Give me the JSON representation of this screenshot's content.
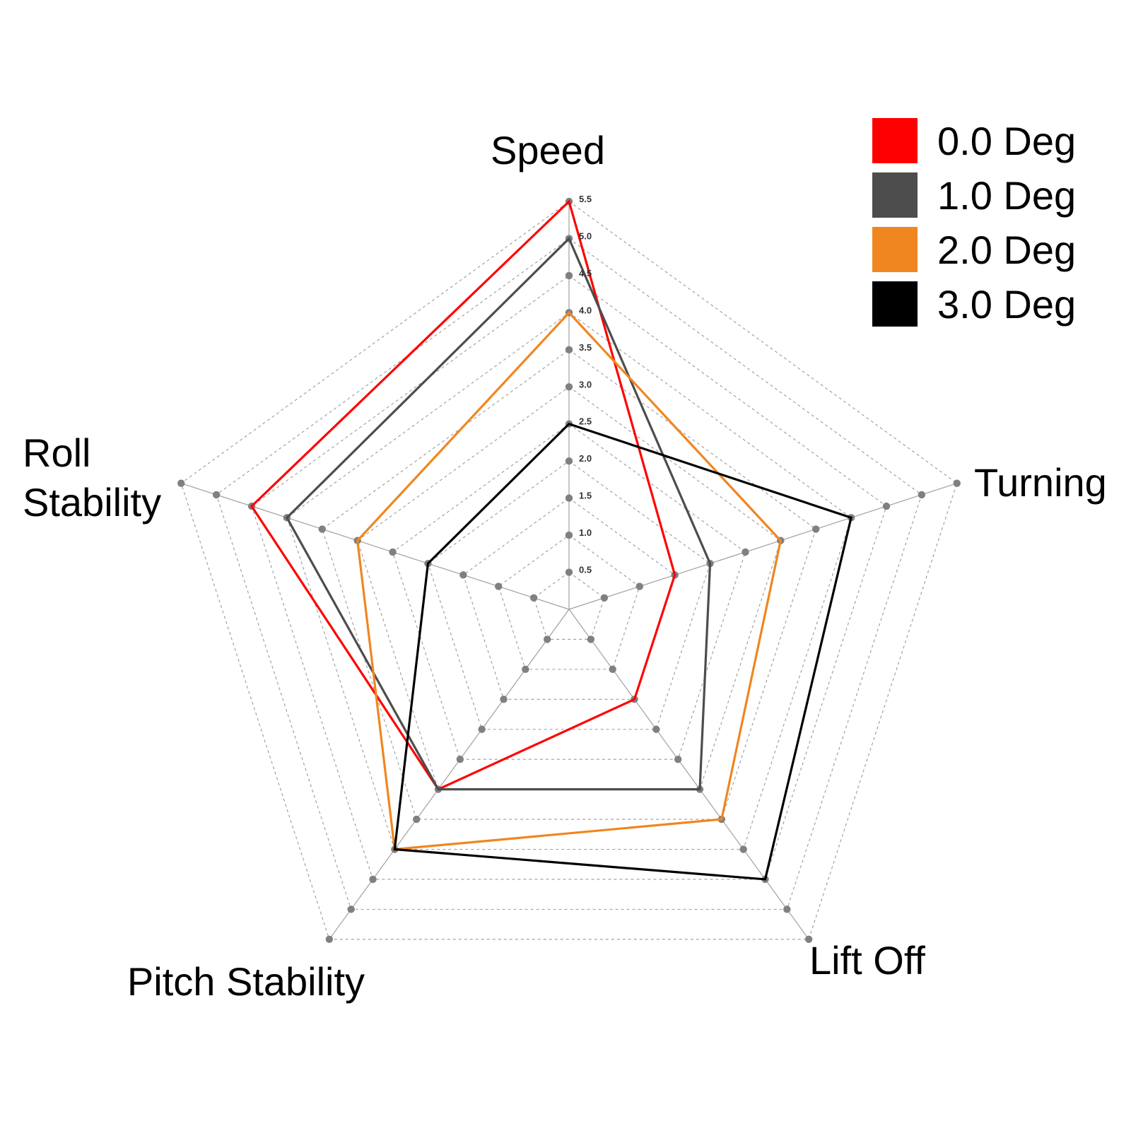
{
  "chart_data": {
    "type": "radar",
    "axes": [
      "Speed",
      "Turning",
      "Lift Off",
      "Pitch Stability",
      "Roll Stability"
    ],
    "axis_label_lines": [
      [
        "Speed"
      ],
      [
        "Turning"
      ],
      [
        "Lift Off"
      ],
      [
        "Pitch Stability"
      ],
      [
        "Roll",
        "Stability"
      ]
    ],
    "tick_labels": [
      "0.5",
      "1.0",
      "1.5",
      "2.0",
      "2.5",
      "3.0",
      "3.5",
      "4.0",
      "4.5",
      "5.0",
      "5.5"
    ],
    "range": [
      0,
      5.5
    ],
    "grid": "dashed",
    "legend_position": "top-right",
    "series": [
      {
        "name": "0.0 Deg",
        "color": "#ff0000",
        "values": [
          5.5,
          1.5,
          1.5,
          3.0,
          4.5
        ]
      },
      {
        "name": "1.0 Deg",
        "color": "#4d4d4d",
        "values": [
          5.0,
          2.0,
          3.0,
          3.0,
          4.0
        ]
      },
      {
        "name": "2.0 Deg",
        "color": "#f0861f",
        "values": [
          4.0,
          3.0,
          3.5,
          4.0,
          3.0
        ]
      },
      {
        "name": "3.0 Deg",
        "color": "#000000",
        "values": [
          2.5,
          4.0,
          4.5,
          4.0,
          2.0
        ]
      }
    ]
  }
}
